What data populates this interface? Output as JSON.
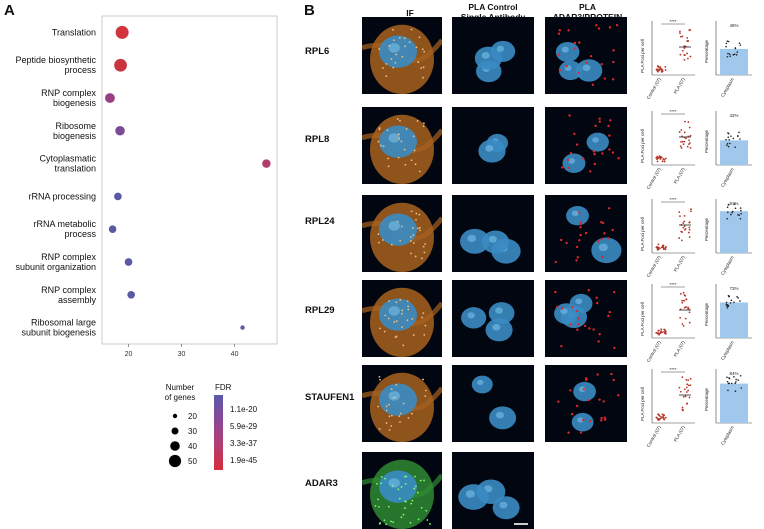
{
  "panel_a": {
    "letter": "A"
  },
  "panel_b": {
    "letter": "B"
  },
  "chart_data": {
    "type": "scatter",
    "title": "",
    "xlabel": "",
    "ylabel": "",
    "xticks": [
      "20",
      "30",
      "40"
    ],
    "xlim": [
      15,
      48
    ],
    "categories": [
      "Translation",
      "Peptide biosynthetic\nprocess",
      "RNP complex\nbiogenesis",
      "Ribosome\nbiogenesis",
      "Cytoplasmatic\ntranslation",
      "rRNA processing",
      "rRNA metabolic\nprocess",
      "RNP complex\nsubunit organization",
      "RNP complex\nassembly",
      "Ribosomal large\nsubunit biogenesis"
    ],
    "points": [
      {
        "x": 18.8,
        "size": 52,
        "color": "#d1343c"
      },
      {
        "x": 18.5,
        "size": 50,
        "color": "#c8343f"
      },
      {
        "x": 16.5,
        "size": 30,
        "color": "#9a3f83"
      },
      {
        "x": 18.4,
        "size": 28,
        "color": "#7a4a96"
      },
      {
        "x": 46.0,
        "size": 22,
        "color": "#b33d6a"
      },
      {
        "x": 18.0,
        "size": 18,
        "color": "#5a5aa4"
      },
      {
        "x": 17.0,
        "size": 18,
        "color": "#5a5aa4"
      },
      {
        "x": 20.0,
        "size": 18,
        "color": "#5a5aa4"
      },
      {
        "x": 20.5,
        "size": 18,
        "color": "#5a5aa4"
      },
      {
        "x": 41.5,
        "size": 6,
        "color": "#5a5aa4"
      }
    ],
    "legend_size": {
      "title": "Number\nof genes",
      "values": [
        "20",
        "30",
        "40",
        "50"
      ]
    },
    "legend_color": {
      "title": "FDR",
      "values": [
        "1.1e-20",
        "5.9e-29",
        "3.3e-37",
        "1.9e-45"
      ],
      "colors": [
        "#5a5aa8",
        "#8a4797",
        "#b33e72",
        "#d52c3c"
      ]
    }
  },
  "headers": {
    "if": "IF",
    "pla_control": "PLA Control\nSingle Antibody",
    "pla_adar": "PLA\nADAR3/PROTEIN"
  },
  "rows": [
    {
      "label": "RPL6"
    },
    {
      "label": "RPL8"
    },
    {
      "label": "RPL24"
    },
    {
      "label": "RPL29"
    },
    {
      "label": "STAUFEN1"
    },
    {
      "label": "ADAR3"
    }
  ],
  "mini": {
    "y_pla": "PLA Foci per cell",
    "y_pct": "Percentage",
    "x_control": "Control (07)",
    "x_pla": "PLA (07)",
    "x_cyto": "Cytoplasm",
    "sig": "****",
    "pct": [
      "46%",
      "42%",
      "91%",
      "73%",
      "84%"
    ]
  }
}
